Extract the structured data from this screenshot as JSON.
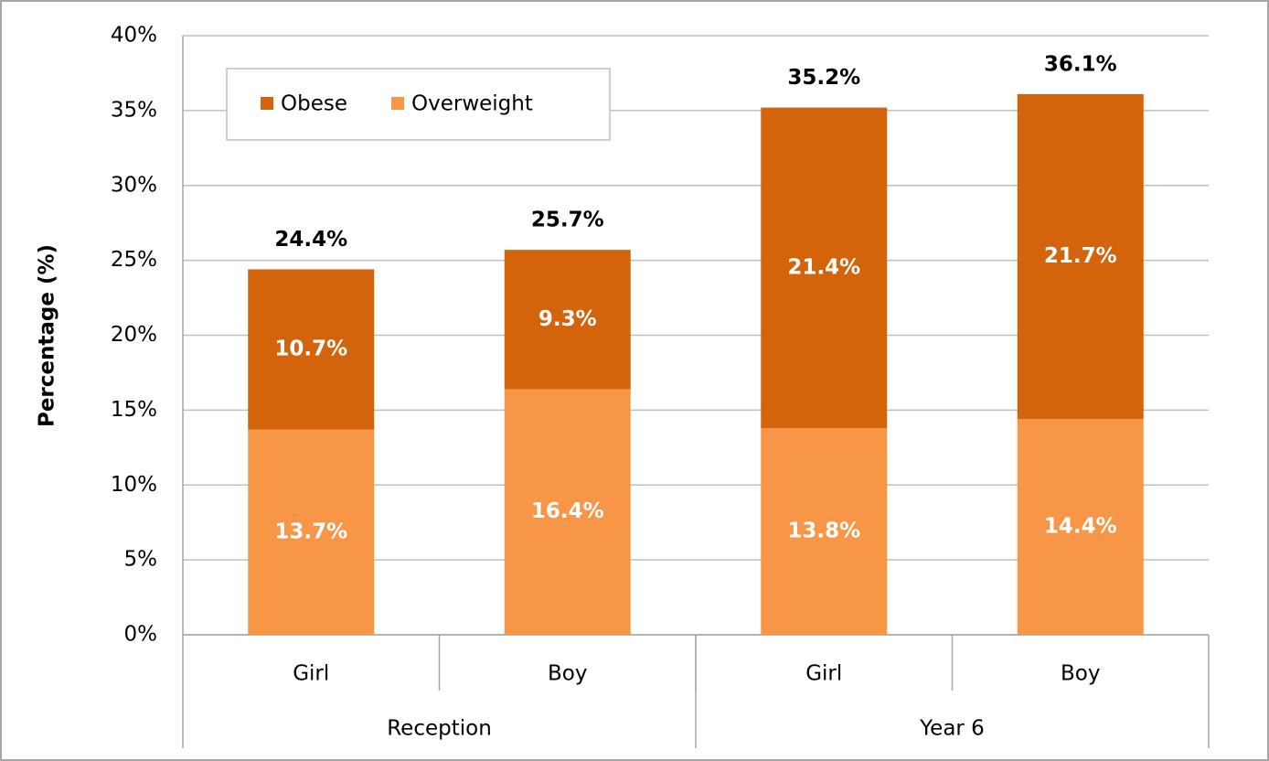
{
  "chart_data": {
    "type": "stacked_bar",
    "y_label": "Percentage (%)",
    "groups": [
      {
        "name": "Reception",
        "categories": [
          "Girl",
          "Boy"
        ]
      },
      {
        "name": "Year 6",
        "categories": [
          "Girl",
          "Boy"
        ]
      }
    ],
    "series": [
      {
        "name": "Overweight",
        "color": "#f79646",
        "values": [
          13.7,
          16.4,
          13.8,
          14.4
        ],
        "value_labels": [
          "13.7%",
          "16.4%",
          "13.8%",
          "14.4%"
        ]
      },
      {
        "name": "Obese",
        "color": "#d4640b",
        "values": [
          10.7,
          9.3,
          21.4,
          21.7
        ],
        "value_labels": [
          "10.7%",
          "9.3%",
          "21.4%",
          "21.7%"
        ]
      }
    ],
    "totals": {
      "values": [
        24.4,
        25.7,
        35.2,
        36.1
      ],
      "value_labels": [
        "24.4%",
        "25.7%",
        "35.2%",
        "36.1%"
      ]
    },
    "ylim": [
      0,
      40
    ],
    "yticks": [
      {
        "value": 0,
        "label": "0%"
      },
      {
        "value": 5,
        "label": "5%"
      },
      {
        "value": 10,
        "label": "10%"
      },
      {
        "value": 15,
        "label": "15%"
      },
      {
        "value": 20,
        "label": "20%"
      },
      {
        "value": 25,
        "label": "25%"
      },
      {
        "value": 30,
        "label": "30%"
      },
      {
        "value": 35,
        "label": "35%"
      },
      {
        "value": 40,
        "label": "40%"
      }
    ],
    "grid": true
  }
}
